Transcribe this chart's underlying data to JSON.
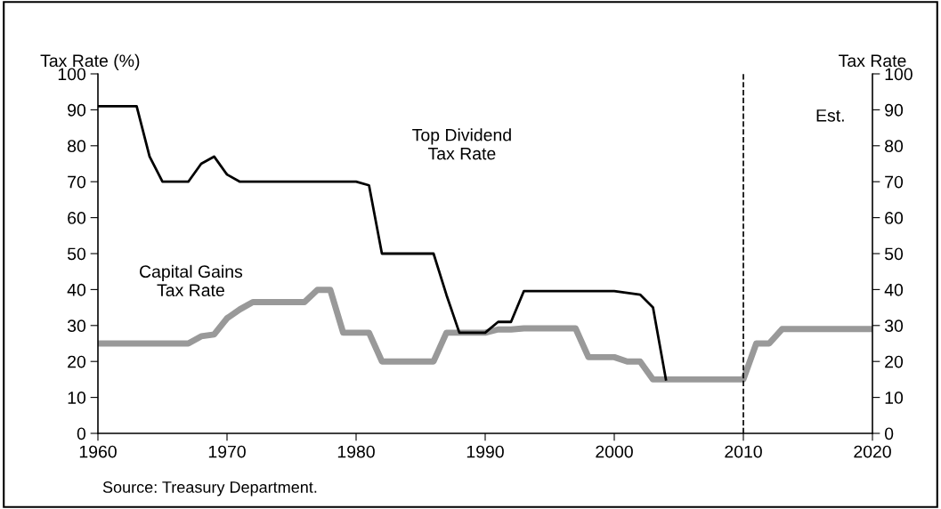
{
  "chart_data": {
    "type": "line",
    "ylabel": "Tax Rate (%)",
    "y2label": "Tax Rate",
    "x": [
      1960,
      1961,
      1962,
      1963,
      1964,
      1965,
      1966,
      1967,
      1968,
      1969,
      1970,
      1971,
      1972,
      1973,
      1974,
      1975,
      1976,
      1977,
      1978,
      1979,
      1980,
      1981,
      1982,
      1983,
      1984,
      1985,
      1986,
      1987,
      1988,
      1989,
      1990,
      1991,
      1992,
      1993,
      1994,
      1995,
      1996,
      1997,
      1998,
      1999,
      2000,
      2001,
      2002,
      2003,
      2004,
      2005,
      2006,
      2007,
      2008,
      2009,
      2010,
      2011,
      2012,
      2013,
      2014,
      2015,
      2016,
      2017,
      2018,
      2019,
      2020
    ],
    "series": [
      {
        "name": "Top Dividend\nTax Rate",
        "color": "#000000",
        "values": [
          91,
          91,
          91,
          91,
          77,
          70,
          70,
          70,
          75,
          77,
          72,
          70,
          70,
          70,
          70,
          70,
          70,
          70,
          70,
          70,
          70,
          69,
          50,
          50,
          50,
          50,
          50,
          38.5,
          28,
          28,
          28,
          31,
          31,
          39.6,
          39.6,
          39.6,
          39.6,
          39.6,
          39.6,
          39.6,
          39.6,
          39.1,
          38.6,
          35,
          15,
          null,
          null,
          null,
          null,
          null,
          null,
          null,
          null,
          null,
          null,
          null,
          null,
          null,
          null,
          null,
          null
        ]
      },
      {
        "name": "Capital Gains\nTax Rate",
        "color": "#999999",
        "values": [
          25,
          25,
          25,
          25,
          25,
          25,
          25,
          25,
          27,
          27.5,
          32,
          34.5,
          36.5,
          36.5,
          36.5,
          36.5,
          36.5,
          39.9,
          39.9,
          28,
          28,
          28,
          20,
          20,
          20,
          20,
          20,
          28,
          28,
          28,
          28,
          28.9,
          28.9,
          29.2,
          29.2,
          29.2,
          29.2,
          29.2,
          21.2,
          21.2,
          21.2,
          20,
          20,
          15,
          15,
          15,
          15,
          15,
          15,
          15,
          15,
          25,
          25,
          29,
          29,
          29,
          29,
          29,
          29,
          29,
          29
        ]
      }
    ],
    "xlim": [
      1960,
      2020
    ],
    "xticks": [
      1960,
      1970,
      1980,
      1990,
      2000,
      2010,
      2020
    ],
    "ylim": [
      0,
      100
    ],
    "yticks": [
      0,
      10,
      20,
      30,
      40,
      50,
      60,
      70,
      80,
      90,
      100
    ],
    "y2lim": [
      0,
      100
    ],
    "y2ticks": [
      0,
      10,
      20,
      30,
      40,
      50,
      60,
      70,
      80,
      90,
      100
    ],
    "ref_lines": [
      {
        "axis": "x",
        "value": 2010,
        "color": "#000000",
        "line_style": "dashed"
      }
    ],
    "annotations": [
      "Est.",
      "Source: Treasury Department."
    ],
    "grid": false,
    "legend": false,
    "marker": "none",
    "line_style": "solid"
  }
}
